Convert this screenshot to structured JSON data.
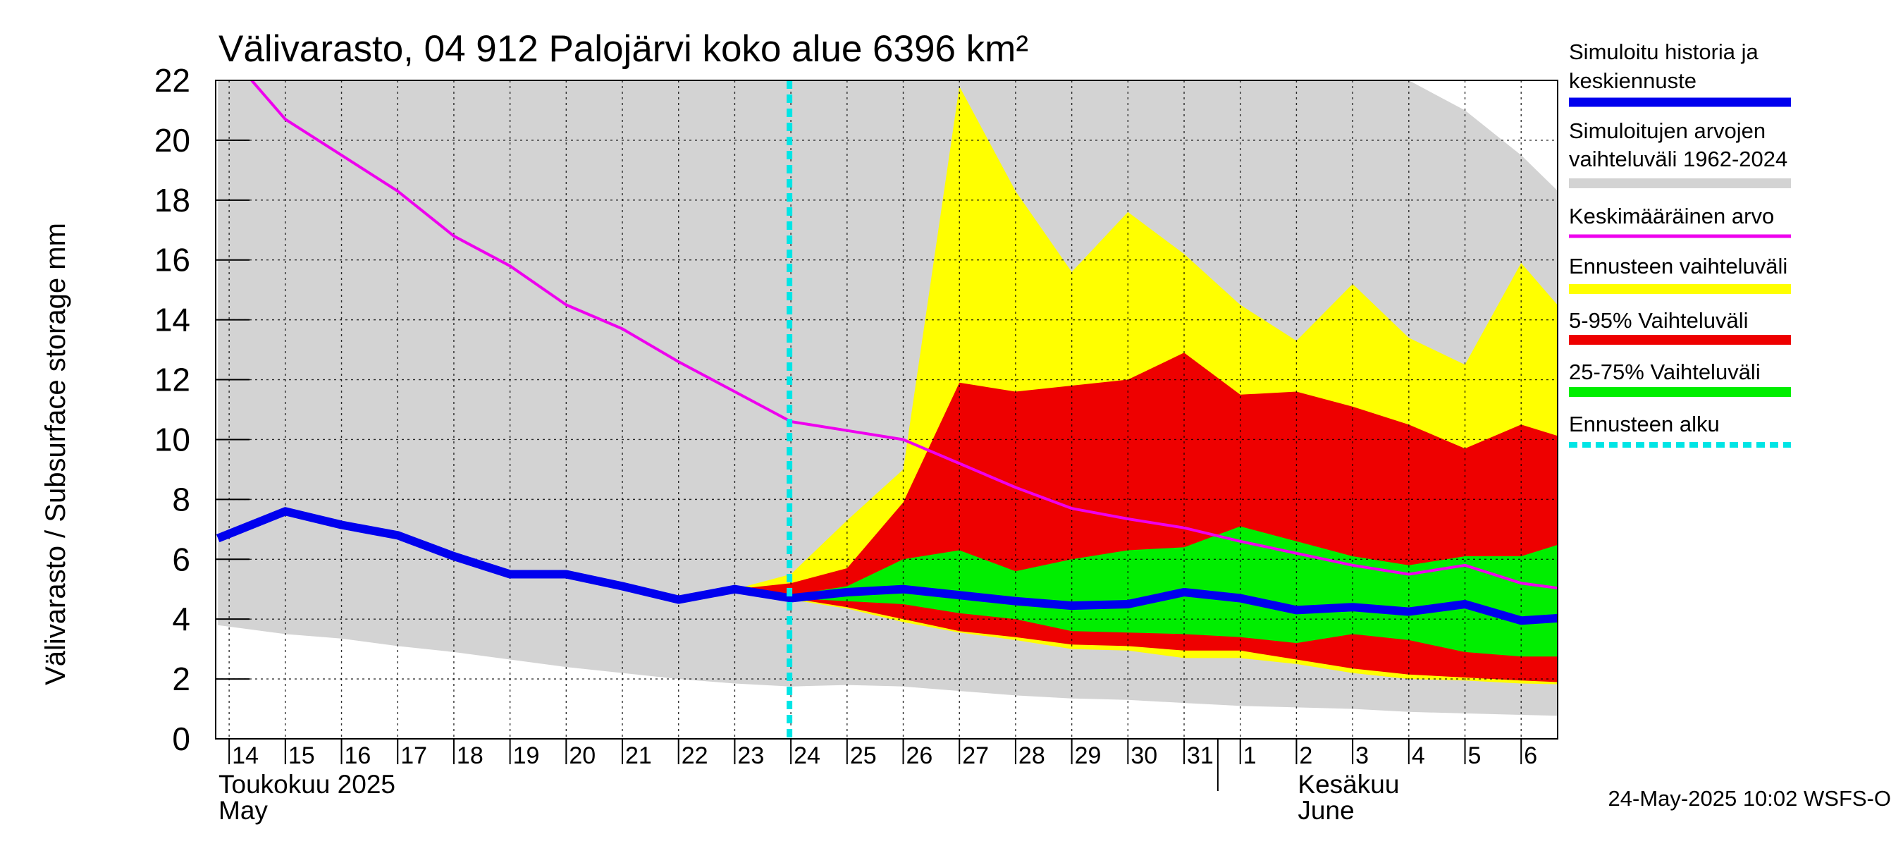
{
  "chart_data": {
    "type": "area",
    "title": "Välivarasto, 04 912 Palojärvi koko alue 6396 km²",
    "ylabel": "Välivarasto / Subsurface storage  mm",
    "ylim": [
      0,
      22
    ],
    "yticks": [
      0,
      2,
      4,
      6,
      8,
      10,
      12,
      14,
      16,
      18,
      20,
      22
    ],
    "x": [
      "14",
      "15",
      "16",
      "17",
      "18",
      "19",
      "20",
      "21",
      "22",
      "23",
      "24",
      "25",
      "26",
      "27",
      "28",
      "29",
      "30",
      "31",
      "1",
      "2",
      "3",
      "4",
      "5",
      "6"
    ],
    "month_labels": [
      {
        "line1": "Toukokuu  2025",
        "line2": "May",
        "at_day": 0
      },
      {
        "line1": "Kesäkuu",
        "line2": "June",
        "at_day": 19
      }
    ],
    "forecast_start_day": 10,
    "footer": "24-May-2025 10:02 WSFS-O",
    "legend": [
      {
        "label_lines": [
          "Simuloitu historia ja",
          "keskiennuste"
        ],
        "color": "#0000ee",
        "style": "thick"
      },
      {
        "label_lines": [
          "Simuloitujen arvojen",
          "vaihteluväli 1962-2024"
        ],
        "color": "#d3d3d3",
        "style": "band"
      },
      {
        "label_lines": [
          "Keskimääräinen arvo"
        ],
        "color": "#ee00ee",
        "style": "thin"
      },
      {
        "label_lines": [
          "Ennusteen vaihteluväli"
        ],
        "color": "#ffff00",
        "style": "band"
      },
      {
        "label_lines": [
          "5-95% Vaihteluväli"
        ],
        "color": "#ee0000",
        "style": "band"
      },
      {
        "label_lines": [
          "25-75% Vaihteluväli"
        ],
        "color": "#00ee00",
        "style": "band"
      },
      {
        "label_lines": [
          "Ennusteen alku"
        ],
        "color": "#00e5e5",
        "style": "dashed"
      }
    ],
    "series": {
      "hist_range": {
        "name": "Simuloitujen arvojen vaihteluväli 1962-2024",
        "color": "#d3d3d3",
        "x": [
          -0.2,
          1,
          2,
          3,
          4,
          5,
          6,
          7,
          8,
          9,
          10,
          11,
          12,
          13,
          14,
          15,
          16,
          17,
          18,
          19,
          20,
          21,
          22,
          23,
          24.2
        ],
        "low": [
          3.8,
          3.5,
          3.35,
          3.1,
          2.9,
          2.65,
          2.4,
          2.2,
          2.0,
          1.85,
          1.75,
          1.8,
          1.75,
          1.6,
          1.45,
          1.35,
          1.3,
          1.2,
          1.1,
          1.05,
          1.0,
          0.9,
          0.85,
          0.8,
          0.75
        ],
        "high": [
          22,
          22,
          22,
          22,
          22,
          22,
          22,
          22,
          22,
          22,
          22,
          22,
          22,
          22,
          22,
          22,
          22,
          22,
          22,
          22,
          22,
          22,
          21,
          19.5,
          17.3
        ]
      },
      "forecast_range": {
        "name": "Ennusteen vaihteluväli",
        "color": "#ffff00",
        "x": [
          9,
          10,
          11,
          12,
          13,
          14,
          15,
          16,
          17,
          18,
          19,
          20,
          21,
          22,
          23,
          24.2
        ],
        "low": [
          5.0,
          4.65,
          4.35,
          3.9,
          3.55,
          3.3,
          3.0,
          2.95,
          2.7,
          2.7,
          2.5,
          2.2,
          2.0,
          1.95,
          1.85,
          1.8
        ],
        "high": [
          5.0,
          5.5,
          7.3,
          9.0,
          21.8,
          18.3,
          15.6,
          17.6,
          16.2,
          14.5,
          13.3,
          15.2,
          13.4,
          12.5,
          15.9,
          13.3
        ]
      },
      "p5_95": {
        "name": "5-95% Vaihteluväli",
        "color": "#ee0000",
        "x": [
          9,
          10,
          11,
          12,
          13,
          14,
          15,
          16,
          17,
          18,
          19,
          20,
          21,
          22,
          23,
          24.2
        ],
        "low": [
          5.0,
          4.7,
          4.4,
          4.0,
          3.6,
          3.4,
          3.15,
          3.1,
          2.95,
          2.95,
          2.65,
          2.35,
          2.15,
          2.05,
          1.95,
          1.85
        ],
        "high": [
          5.0,
          5.2,
          5.7,
          7.9,
          11.9,
          11.6,
          11.8,
          12.0,
          12.9,
          11.5,
          11.6,
          11.1,
          10.5,
          9.7,
          10.5,
          9.8
        ]
      },
      "p25_75": {
        "name": "25-75% Vaihteluväli",
        "color": "#00ee00",
        "x": [
          9,
          10,
          11,
          12,
          13,
          14,
          15,
          16,
          17,
          18,
          19,
          20,
          21,
          22,
          23,
          24.2
        ],
        "low": [
          5.0,
          4.7,
          4.6,
          4.5,
          4.2,
          4.0,
          3.6,
          3.55,
          3.5,
          3.4,
          3.2,
          3.5,
          3.3,
          2.9,
          2.75,
          2.75
        ],
        "high": [
          5.0,
          4.8,
          5.1,
          6.0,
          6.3,
          5.6,
          6.0,
          6.3,
          6.4,
          7.1,
          6.6,
          6.1,
          5.8,
          6.1,
          6.1,
          6.8
        ]
      },
      "mean": {
        "name": "Keskimääräinen arvo",
        "color": "#ee00ee",
        "x": [
          0.4,
          1,
          2,
          3,
          4,
          5,
          6,
          7,
          8,
          9,
          10,
          11,
          12,
          13,
          14,
          15,
          16,
          17,
          18,
          19,
          20,
          21,
          22,
          23,
          24.2
        ],
        "y": [
          22.0,
          20.7,
          19.5,
          18.3,
          16.8,
          15.8,
          14.5,
          13.7,
          12.6,
          11.6,
          10.6,
          10.3,
          10.0,
          9.2,
          8.4,
          7.7,
          7.35,
          7.05,
          6.6,
          6.2,
          5.8,
          5.5,
          5.8,
          5.2,
          4.9
        ]
      },
      "simulated": {
        "name": "Simuloitu historia ja keskiennuste",
        "color": "#0000ee",
        "x": [
          -0.2,
          1,
          2,
          3,
          4,
          5,
          6,
          7,
          8,
          9,
          10,
          11,
          12,
          13,
          14,
          15,
          16,
          17,
          18,
          19,
          20,
          21,
          22,
          23,
          24.2
        ],
        "y": [
          6.7,
          7.6,
          7.15,
          6.8,
          6.1,
          5.5,
          5.5,
          5.1,
          4.65,
          5.0,
          4.7,
          4.9,
          5.0,
          4.8,
          4.6,
          4.45,
          4.5,
          4.9,
          4.7,
          4.3,
          4.4,
          4.25,
          4.5,
          3.95,
          4.1
        ]
      }
    }
  }
}
